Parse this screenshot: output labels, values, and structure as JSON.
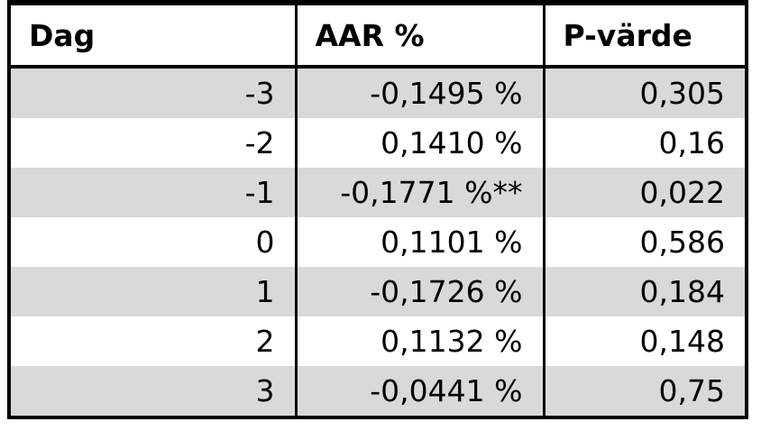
{
  "table": {
    "headers": [
      "Dag",
      "AAR %",
      "P-värde"
    ],
    "rows": [
      [
        "-3",
        "-0,1495 %",
        "0,305"
      ],
      [
        "-2",
        "0,1410 %",
        "0,16"
      ],
      [
        "-1",
        "-0,1771 %**",
        "0,022"
      ],
      [
        "0",
        "0,1101 %",
        "0,586"
      ],
      [
        "1",
        "-0,1726 %",
        "0,184"
      ],
      [
        "2",
        "0,1132 %",
        "0,148"
      ],
      [
        "3",
        "-0,0441 %",
        "0,75"
      ]
    ]
  },
  "colors": {
    "shaded_row": "#d9d9d9",
    "plain_row": "#ffffff",
    "border": "#000000"
  }
}
